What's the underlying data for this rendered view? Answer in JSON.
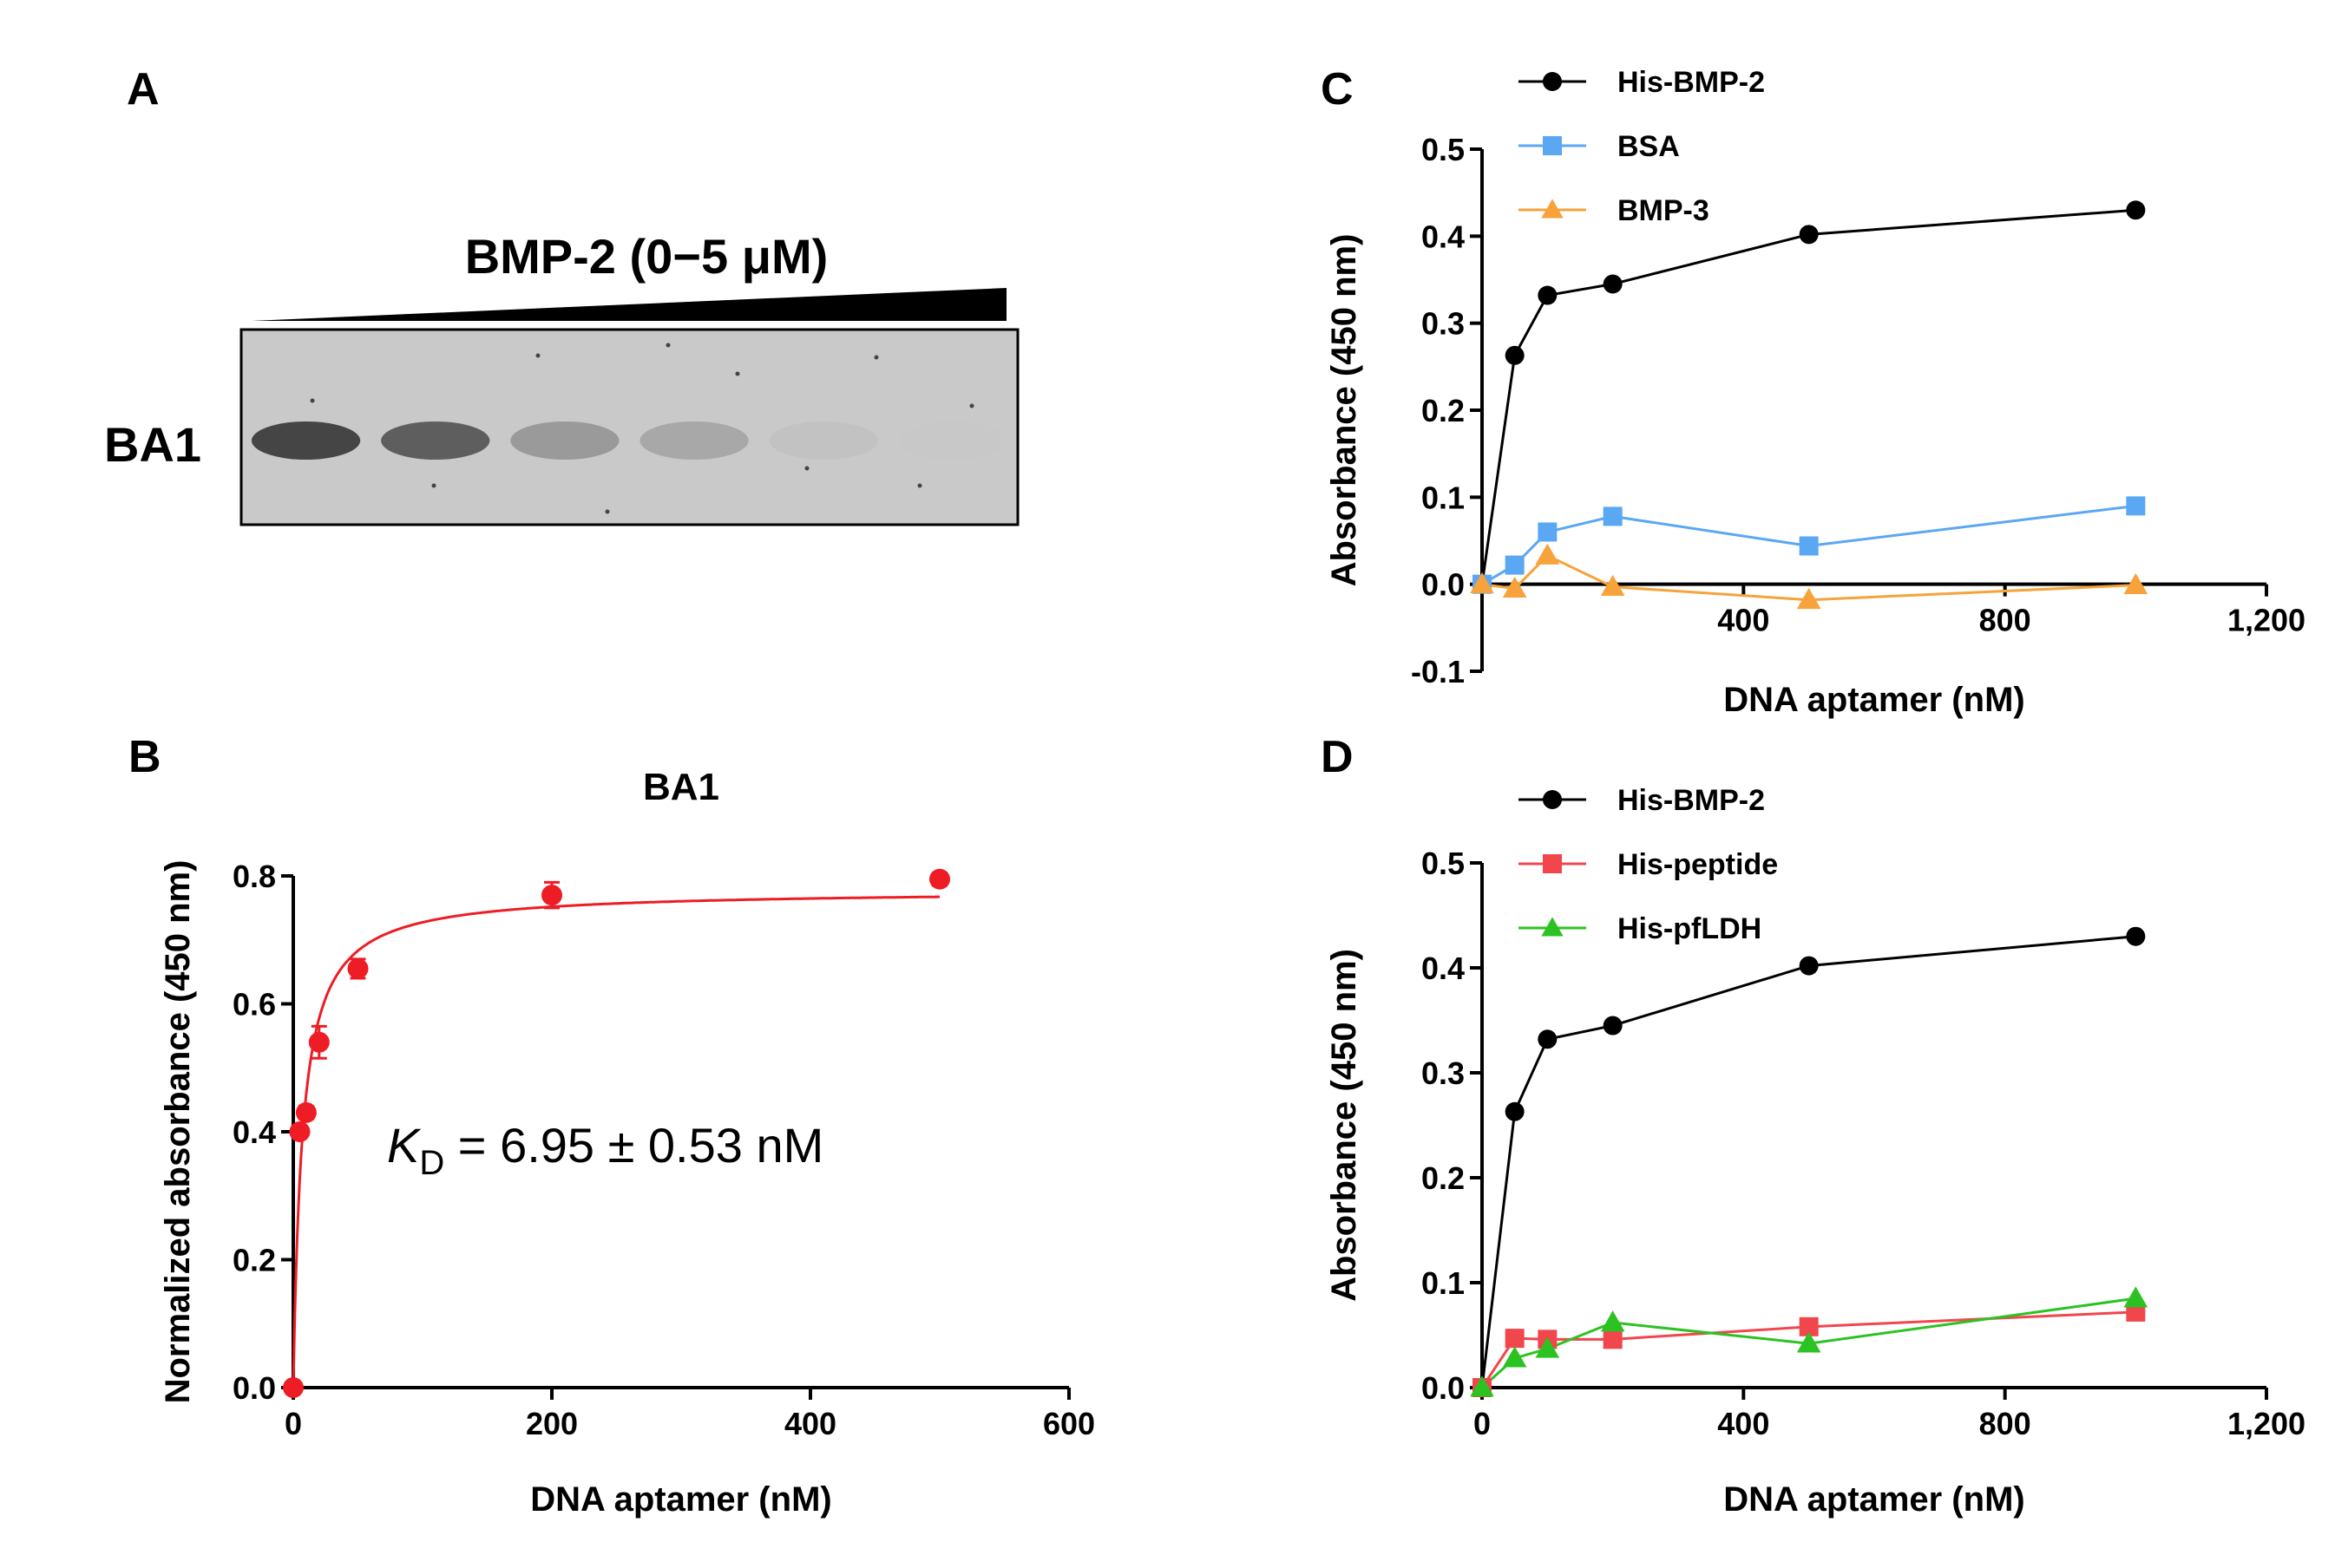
{
  "panel_a": {
    "label": "A",
    "title": "BMP-2 (0−5 μM)",
    "lane_label": "BA1",
    "gel_band_intensities": [
      0.92,
      0.75,
      0.32,
      0.22,
      0.04,
      0.0
    ]
  },
  "kd": {
    "italic": "K",
    "subscript": "D",
    "rest": " = 6.95 ± 0.53 nM"
  },
  "chart_data": [
    {
      "panel": "B",
      "type": "scatter",
      "title": "BA1",
      "xlabel": "DNA aptamer (nM)",
      "ylabel": "Normalized absorbance (450 nm)",
      "xlim": [
        0,
        600
      ],
      "ylim": [
        0,
        0.8
      ],
      "xticks": [
        0,
        200,
        400,
        600
      ],
      "xtick_labels": [
        "0",
        "200",
        "400",
        "600"
      ],
      "yticks": [
        0,
        0.2,
        0.4,
        0.6,
        0.8
      ],
      "ytick_labels": [
        "0.0",
        "0.2",
        "0.4",
        "0.6",
        "0.8"
      ],
      "series": [
        {
          "name": "BA1",
          "color": "#ee1c24",
          "marker": "circle",
          "x": [
            0,
            5,
            10,
            20,
            50,
            200,
            500
          ],
          "y": [
            0.0,
            0.4,
            0.43,
            0.54,
            0.655,
            0.77,
            0.795
          ],
          "err": [
            0,
            0.005,
            0.01,
            0.025,
            0.015,
            0.02,
            0.01
          ]
        }
      ],
      "fit": {
        "model": "one-site binding",
        "bmax": 0.778,
        "kd": 6.95,
        "color": "#ee1c24"
      }
    },
    {
      "panel": "C",
      "type": "line",
      "xlabel": "DNA aptamer (nM)",
      "ylabel": "Absorbance (450 nm)",
      "xlim": [
        0,
        1200
      ],
      "ylim": [
        -0.1,
        0.5
      ],
      "xticks": [
        400,
        800,
        1200
      ],
      "xtick_labels": [
        "400",
        "800",
        "1,200"
      ],
      "yticks": [
        -0.1,
        0.0,
        0.1,
        0.2,
        0.3,
        0.4,
        0.5
      ],
      "ytick_labels": [
        "-0.1",
        "0.0",
        "0.1",
        "0.2",
        "0.3",
        "0.4",
        "0.5"
      ],
      "legend": "top-left",
      "series": [
        {
          "name": "His-BMP-2",
          "color": "#000000",
          "marker": "circle",
          "x": [
            0,
            50,
            100,
            200,
            500,
            1000
          ],
          "y": [
            0.0,
            0.263,
            0.332,
            0.345,
            0.402,
            0.43
          ]
        },
        {
          "name": "BSA",
          "color": "#5aa7f3",
          "marker": "square",
          "x": [
            0,
            50,
            100,
            200,
            500,
            1000
          ],
          "y": [
            0.0,
            0.022,
            0.06,
            0.078,
            0.044,
            0.09
          ]
        },
        {
          "name": "BMP-3",
          "color": "#f7a23b",
          "marker": "triangle",
          "x": [
            0,
            50,
            100,
            200,
            500,
            1000
          ],
          "y": [
            0.0,
            -0.005,
            0.033,
            -0.003,
            -0.018,
            -0.001
          ]
        }
      ]
    },
    {
      "panel": "D",
      "type": "line",
      "xlabel": "DNA aptamer (nM)",
      "ylabel": "Absorbance (450 nm)",
      "xlim": [
        0,
        1200
      ],
      "ylim": [
        0,
        0.5
      ],
      "xticks": [
        0,
        400,
        800,
        1200
      ],
      "xtick_labels": [
        "0",
        "400",
        "800",
        "1,200"
      ],
      "yticks": [
        0.0,
        0.1,
        0.2,
        0.3,
        0.4,
        0.5
      ],
      "ytick_labels": [
        "0.0",
        "0.1",
        "0.2",
        "0.3",
        "0.4",
        "0.5"
      ],
      "legend": "top-left",
      "series": [
        {
          "name": "His-BMP-2",
          "color": "#000000",
          "marker": "circle",
          "x": [
            0,
            50,
            100,
            200,
            500,
            1000
          ],
          "y": [
            0.0,
            0.263,
            0.332,
            0.345,
            0.402,
            0.43
          ]
        },
        {
          "name": "His-peptide",
          "color": "#f0464c",
          "marker": "square",
          "x": [
            0,
            50,
            100,
            200,
            500,
            1000
          ],
          "y": [
            0.0,
            0.047,
            0.046,
            0.046,
            0.058,
            0.072
          ]
        },
        {
          "name": "His-pfLDH",
          "color": "#2cc322",
          "marker": "triangle",
          "x": [
            0,
            50,
            100,
            200,
            500,
            1000
          ],
          "y": [
            0.0,
            0.028,
            0.037,
            0.062,
            0.042,
            0.085
          ]
        }
      ]
    }
  ]
}
